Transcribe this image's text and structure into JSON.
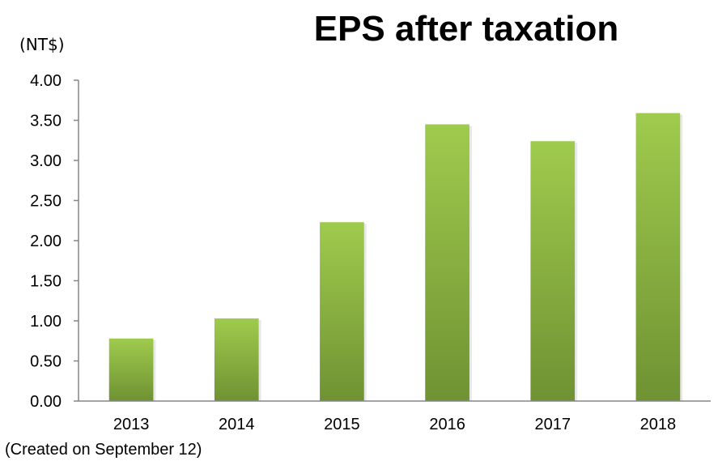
{
  "chart_data": {
    "type": "bar",
    "title": "EPS after taxation",
    "unit_label": "(NT$)",
    "footnote": "(Created on September 12)",
    "categories": [
      "2013",
      "2014",
      "2015",
      "2016",
      "2017",
      "2018"
    ],
    "values": [
      0.78,
      1.03,
      2.23,
      3.45,
      3.24,
      3.59
    ],
    "ylim": [
      0,
      4
    ],
    "yticks": [
      "0.00",
      "0.50",
      "1.00",
      "1.50",
      "2.00",
      "2.50",
      "3.00",
      "3.50",
      "4.00"
    ],
    "xlabel": "",
    "ylabel": "",
    "grid": false,
    "legend": "none",
    "colors": {
      "bar_top": "#9fcb4d",
      "bar_bottom": "#6f9233",
      "axis": "#868686",
      "text": "#000000"
    }
  }
}
